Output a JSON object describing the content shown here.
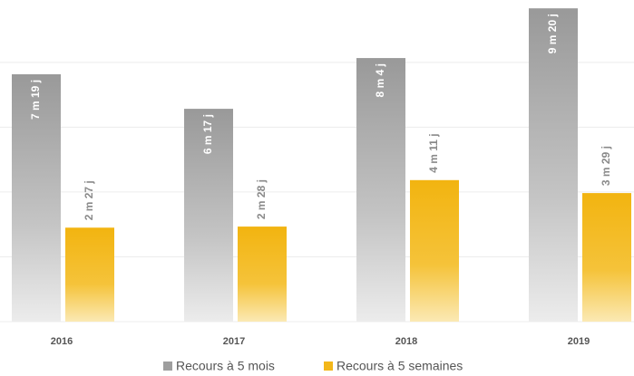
{
  "chart_data": {
    "type": "bar",
    "categories": [
      "2016",
      "2017",
      "2018",
      "2019"
    ],
    "series": [
      {
        "name": "Recours à 5 mois",
        "color": "#9e9e9e",
        "values": [
          7.633,
          6.567,
          8.133,
          9.667
        ],
        "value_labels": [
          "7 m 19 j",
          "6 m 17 j",
          "8 m 4 j",
          "9 m 20 j"
        ]
      },
      {
        "name": "Recours à 5 semaines",
        "color": "#f3b71a",
        "values": [
          2.9,
          2.933,
          4.367,
          3.967
        ],
        "value_labels": [
          "2 m 27 j",
          "2 m 28 j",
          "4 m 11 j",
          "3 m 29 j"
        ]
      }
    ],
    "ylim": [
      0,
      10
    ],
    "yticks": [
      0,
      2,
      4,
      6,
      8,
      10
    ],
    "grid": true
  }
}
